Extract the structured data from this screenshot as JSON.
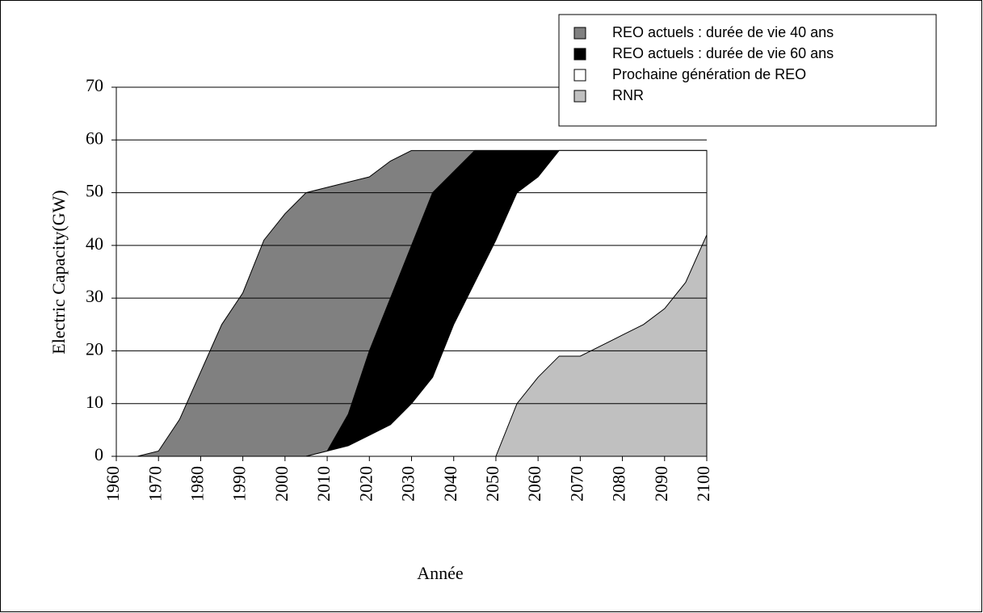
{
  "chart_data": {
    "type": "area",
    "x_label": "Année",
    "y_label": "Electric Capacity(GW)",
    "x": [
      1960,
      1965,
      1970,
      1975,
      1980,
      1985,
      1990,
      1995,
      2000,
      2005,
      2010,
      2015,
      2020,
      2025,
      2030,
      2035,
      2040,
      2045,
      2050,
      2055,
      2060,
      2065,
      2070,
      2075,
      2080,
      2085,
      2090,
      2095,
      2100
    ],
    "series": [
      {
        "name": "REO actuels : durée de vie 40 ans",
        "color": "#808080",
        "values": [
          0,
          0,
          1,
          7,
          16,
          25,
          31,
          41,
          46,
          50,
          51,
          52,
          53,
          56,
          58,
          58,
          58,
          58,
          58,
          58,
          58,
          58,
          58,
          58,
          58,
          58,
          58,
          58,
          58
        ]
      },
      {
        "name": "REO actuels : durée de vie 60 ans",
        "color": "#000000",
        "values": [
          0,
          0,
          0,
          0,
          0,
          0,
          0,
          0,
          0,
          0,
          1,
          8,
          20,
          30,
          40,
          50,
          54,
          58,
          58,
          58,
          58,
          58,
          58,
          58,
          58,
          58,
          58,
          58,
          58
        ]
      },
      {
        "name": "Prochaine génération de REO",
        "color": "#ffffff",
        "values": [
          0,
          0,
          0,
          0,
          0,
          0,
          0,
          0,
          0,
          0,
          1,
          2,
          4,
          6,
          10,
          15,
          25,
          33,
          41,
          50,
          53,
          58,
          58,
          58,
          58,
          58,
          58,
          58,
          58
        ]
      },
      {
        "name": "RNR",
        "color": "#c0c0c0",
        "values": [
          0,
          0,
          0,
          0,
          0,
          0,
          0,
          0,
          0,
          0,
          0,
          0,
          0,
          0,
          0,
          0,
          0,
          0,
          0,
          10,
          15,
          19,
          19,
          21,
          23,
          25,
          28,
          33,
          42
        ]
      }
    ],
    "xlim": [
      1960,
      2100
    ],
    "xticks": [
      1960,
      1970,
      1980,
      1990,
      2000,
      2010,
      2020,
      2030,
      2040,
      2050,
      2060,
      2070,
      2080,
      2090,
      2100
    ],
    "ylim": [
      0,
      70
    ],
    "yticks": [
      0,
      10,
      20,
      30,
      40,
      50,
      60,
      70
    ],
    "grid": true,
    "legend": "upper right"
  }
}
